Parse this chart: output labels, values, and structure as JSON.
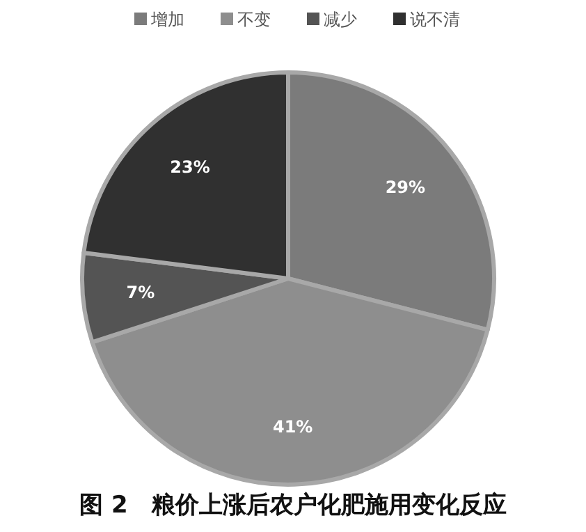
{
  "chart_data": {
    "type": "pie",
    "title": "图 2　粮价上涨后农户化肥施用变化反应",
    "categories": [
      "增加",
      "不变",
      "减少",
      "说不清"
    ],
    "values": [
      29,
      41,
      7,
      23
    ],
    "colors": [
      "#7b7b7b",
      "#8e8e8e",
      "#545454",
      "#303030"
    ],
    "value_labels": [
      "29%",
      "41%",
      "7%",
      "23%"
    ],
    "legend": "top"
  }
}
